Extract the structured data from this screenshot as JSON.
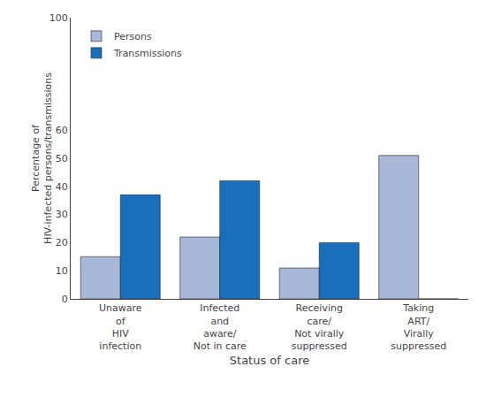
{
  "chart_data": {
    "type": "bar",
    "xlabel": "Status of care",
    "ylabel": "Percentage of\nHIV-infected persons/transmissions",
    "categories": [
      "Unaware\nof\nHIV\ninfection",
      "Infected\nand\naware/\nNot in care",
      "Receiving\ncare/\nNot virally\nsuppressed",
      "Taking\nART/\nVirally\nsuppressed"
    ],
    "series": [
      {
        "name": "Persons",
        "color": "#a8b8d8",
        "values": [
          15,
          22,
          11,
          51
        ]
      },
      {
        "name": "Transmissions",
        "color": "#1a6fbb",
        "values": [
          37,
          42,
          20,
          0
        ]
      }
    ],
    "ylim": [
      0,
      100
    ],
    "yticks": [
      0,
      10,
      20,
      30,
      40,
      50,
      60,
      100
    ],
    "grid": false,
    "legend": "upper left"
  }
}
